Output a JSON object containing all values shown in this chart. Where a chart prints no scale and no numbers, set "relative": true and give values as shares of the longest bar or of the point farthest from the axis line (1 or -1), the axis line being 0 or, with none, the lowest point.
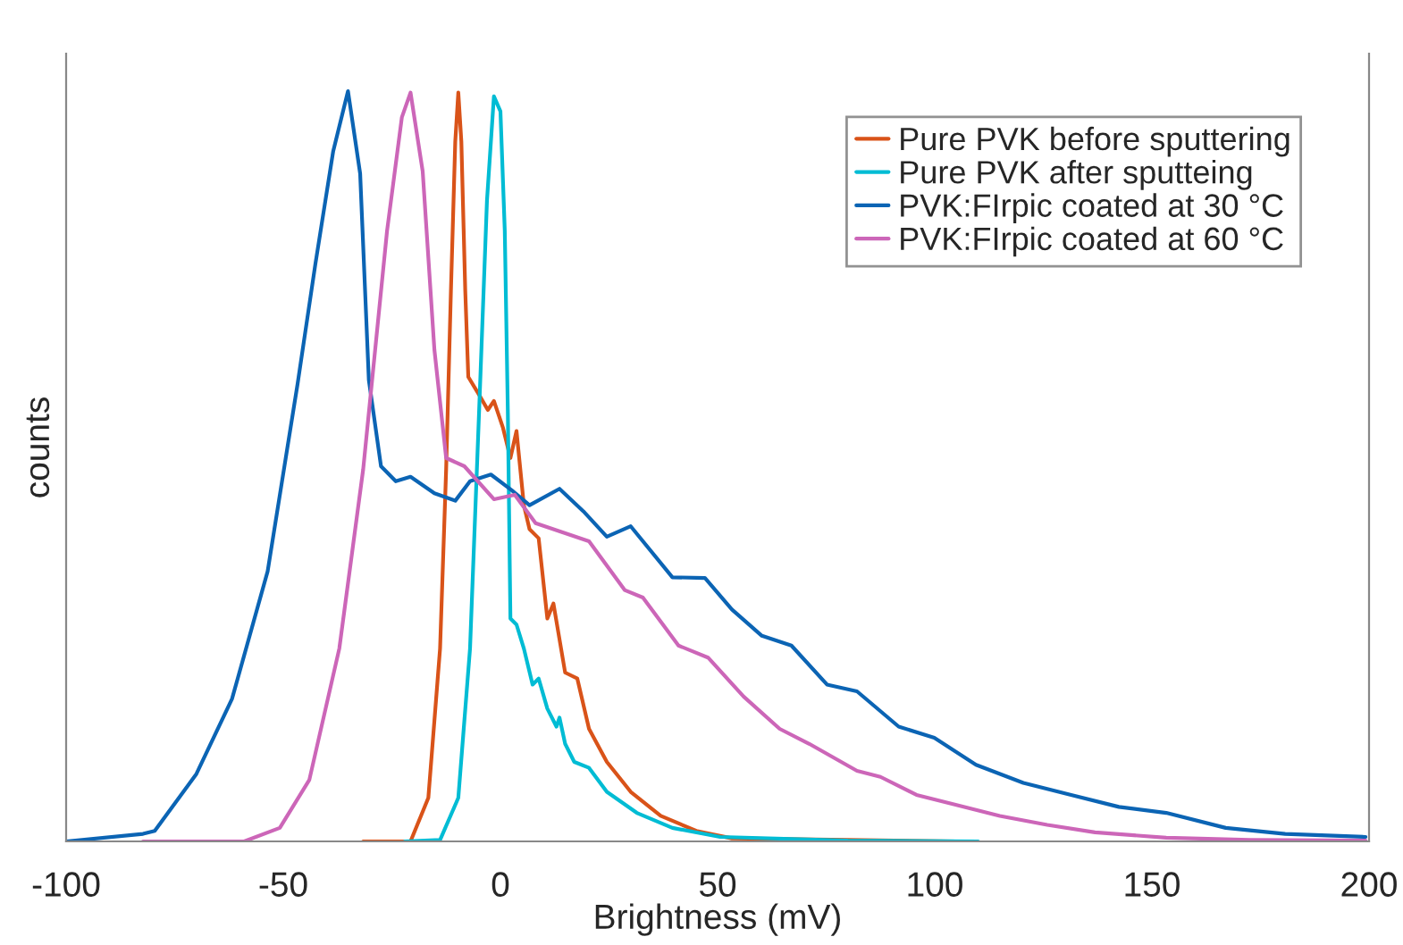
{
  "chart_data": {
    "type": "line",
    "relative": true,
    "xlabel": "Brightness (mV)",
    "ylabel": "counts",
    "xlim": [
      -100,
      200
    ],
    "xticks": [
      -100,
      -50,
      0,
      50,
      100,
      150,
      200
    ],
    "legend": "top right",
    "grid": false,
    "series": [
      {
        "name": "Pure PVK before sputtering",
        "color": "#d95319",
        "x": [
          -31.6,
          -20.7,
          -16.6,
          -13.9,
          -12.5,
          -11.4,
          -10.4,
          -9.7,
          -9.0,
          -8.1,
          -7.4,
          -4.9,
          -2.9,
          -1.5,
          0.6,
          2.3,
          3.7,
          5.4,
          6.7,
          8.8,
          10.8,
          12.2,
          14.9,
          17.7,
          20.4,
          24.5,
          30.0,
          36.9,
          45.1,
          53.3,
          80,
          105
        ],
        "values": [
          0,
          0,
          0.058,
          0.257,
          0.496,
          0.734,
          0.933,
          0.998,
          0.933,
          0.734,
          0.619,
          0.595,
          0.575,
          0.587,
          0.551,
          0.511,
          0.547,
          0.448,
          0.416,
          0.404,
          0.297,
          0.317,
          0.225,
          0.217,
          0.15,
          0.106,
          0.066,
          0.034,
          0.014,
          0.004,
          0.002,
          0
        ]
      },
      {
        "name": "Pure PVK after sputteing",
        "color": "#00bcd4",
        "x": [
          -22.0,
          -13.9,
          -9.7,
          -7.0,
          -4.9,
          -3.1,
          -1.5,
          0.0,
          1.0,
          1.7,
          2.3,
          3.7,
          5.4,
          7.4,
          8.8,
          10.8,
          12.9,
          13.6,
          14.9,
          17.0,
          20.4,
          24.5,
          31.4,
          39.6,
          50.6,
          80,
          110
        ],
        "values": [
          0,
          0.002,
          0.058,
          0.257,
          0.575,
          0.854,
          0.993,
          0.973,
          0.814,
          0.575,
          0.297,
          0.289,
          0.257,
          0.209,
          0.217,
          0.177,
          0.153,
          0.165,
          0.13,
          0.106,
          0.098,
          0.066,
          0.038,
          0.018,
          0.006,
          0.001,
          0
        ]
      },
      {
        "name": "PVK:FIrpic coated at 30 °C",
        "color": "#0b64b4",
        "x": [
          -100,
          -82.3,
          -79.6,
          -70,
          -61.8,
          -53.6,
          -46.7,
          -42.6,
          -38.5,
          -35.1,
          -32.3,
          -30.3,
          -27.5,
          -24.1,
          -20.7,
          -15.2,
          -10.4,
          -7.0,
          -2.2,
          2.6,
          6.7,
          13.6,
          19.1,
          24.5,
          30.0,
          39.6,
          47.1,
          53.3,
          60.2,
          67.0,
          75.2,
          82.1,
          91.7,
          99.9,
          109.5,
          120.4,
          131.4,
          142.4,
          153.3,
          167.0,
          180.7,
          199.2
        ],
        "values": [
          0,
          0.01,
          0.014,
          0.09,
          0.19,
          0.36,
          0.61,
          0.77,
          0.92,
          1.0,
          0.89,
          0.615,
          0.5,
          0.48,
          0.486,
          0.464,
          0.454,
          0.48,
          0.489,
          0.468,
          0.448,
          0.47,
          0.44,
          0.406,
          0.42,
          0.352,
          0.351,
          0.309,
          0.274,
          0.261,
          0.209,
          0.2,
          0.153,
          0.138,
          0.102,
          0.078,
          0.062,
          0.046,
          0.038,
          0.018,
          0.01,
          0.006
        ]
      },
      {
        "name": "PVK:FIrpic coated at 60 °C",
        "color": "#cc66b8",
        "x": [
          -82.3,
          -59.0,
          -50.8,
          -44.0,
          -37.1,
          -31.6,
          -26.1,
          -22.7,
          -20.7,
          -17.9,
          -15.2,
          -12.5,
          -8.3,
          -1.5,
          3.3,
          8.1,
          16.3,
          20.4,
          28.6,
          32.8,
          41.0,
          47.8,
          56.0,
          64.3,
          71.1,
          82.1,
          87.5,
          95.8,
          104.0,
          115.0,
          125.9,
          136.9,
          153.3,
          172.5,
          199.2
        ],
        "values": [
          0,
          0,
          0.018,
          0.082,
          0.257,
          0.496,
          0.814,
          0.965,
          0.998,
          0.893,
          0.655,
          0.511,
          0.5,
          0.456,
          0.462,
          0.424,
          0.408,
          0.4,
          0.335,
          0.325,
          0.261,
          0.245,
          0.193,
          0.15,
          0.13,
          0.094,
          0.086,
          0.062,
          0.05,
          0.034,
          0.022,
          0.012,
          0.005,
          0.002,
          0.001
        ]
      }
    ]
  }
}
